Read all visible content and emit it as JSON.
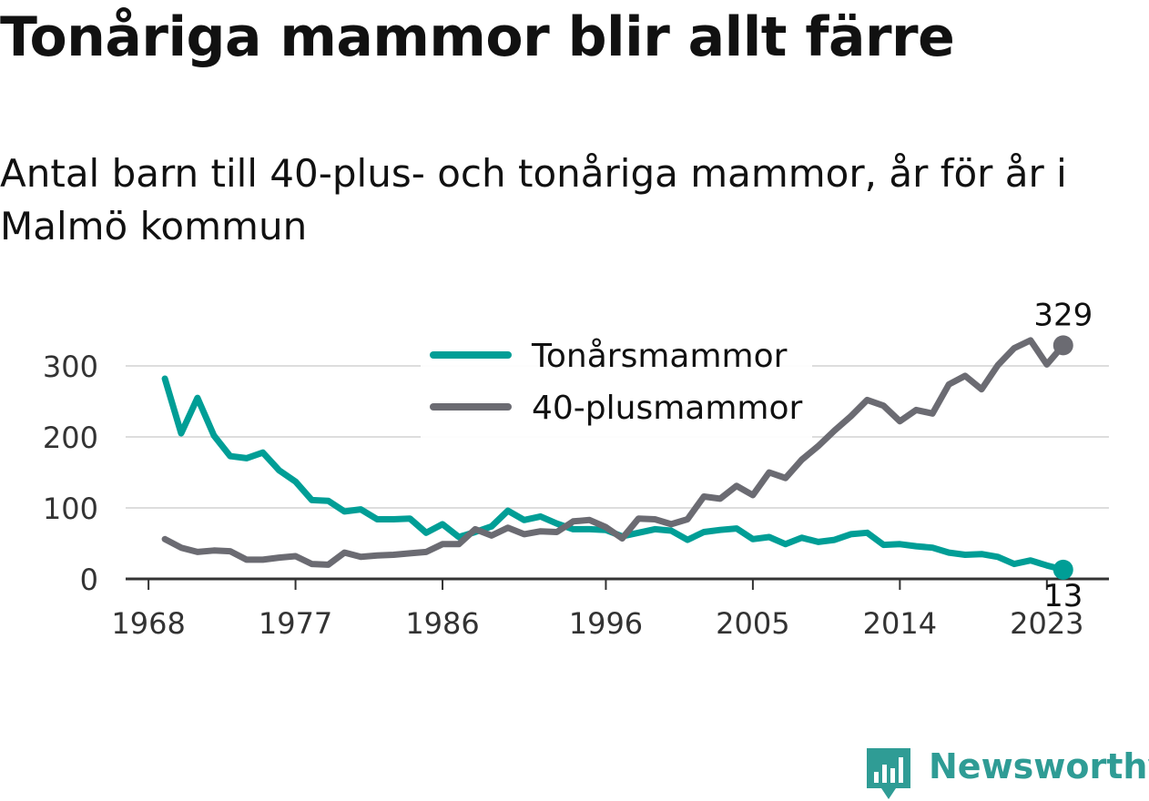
{
  "header": {
    "title": "Tonåriga mammor blir allt färre",
    "subtitle": "Antal barn till 40-plus- och tonåriga mammor, år för år i Malmö kommun"
  },
  "brand": {
    "name": "Newsworthy",
    "icon": "newsworthy-logo-icon",
    "color": "#2f9c95"
  },
  "chart_data": {
    "type": "line",
    "title": "Tonåriga mammor blir allt färre",
    "subtitle": "Antal barn till 40-plus- och tonåriga mammor, år för år i Malmö kommun",
    "x_ticks": [
      "1968",
      "1977",
      "1986",
      "1996",
      "2005",
      "2014",
      "2023"
    ],
    "y_ticks": [
      "0",
      "100",
      "200",
      "300"
    ],
    "xlim": [
      1966.6,
      2026.8
    ],
    "ylim": [
      0,
      300
    ],
    "grid": true,
    "legend_position": "top-center",
    "x": [
      1969,
      1970,
      1971,
      1972,
      1973,
      1974,
      1975,
      1976,
      1977,
      1978,
      1979,
      1980,
      1981,
      1982,
      1983,
      1984,
      1985,
      1986,
      1987,
      1988,
      1989,
      1990,
      1991,
      1992,
      1993,
      1994,
      1995,
      1996,
      1997,
      1998,
      1999,
      2000,
      2001,
      2002,
      2003,
      2004,
      2005,
      2006,
      2007,
      2008,
      2009,
      2010,
      2011,
      2012,
      2013,
      2014,
      2015,
      2016,
      2017,
      2018,
      2019,
      2020,
      2021,
      2022,
      2023,
      2024
    ],
    "series": [
      {
        "name": "Tonårsmammor",
        "color": "#009e96",
        "end_label": "13",
        "values": [
          282,
          205,
          255,
          202,
          173,
          170,
          178,
          153,
          137,
          111,
          110,
          95,
          98,
          84,
          84,
          85,
          65,
          77,
          59,
          66,
          74,
          96,
          83,
          88,
          78,
          70,
          70,
          69,
          60,
          65,
          70,
          68,
          55,
          66,
          69,
          71,
          56,
          59,
          49,
          58,
          52,
          55,
          63,
          65,
          48,
          49,
          46,
          44,
          37,
          34,
          35,
          31,
          21,
          26,
          19,
          13
        ]
      },
      {
        "name": "40-plusmammor",
        "color": "#6b6b72",
        "end_label": "329",
        "values": [
          56,
          44,
          38,
          40,
          39,
          27,
          27,
          30,
          32,
          21,
          20,
          37,
          31,
          33,
          34,
          36,
          38,
          49,
          49,
          70,
          61,
          72,
          63,
          67,
          66,
          81,
          83,
          73,
          57,
          85,
          84,
          77,
          84,
          116,
          113,
          131,
          118,
          150,
          142,
          168,
          187,
          209,
          229,
          252,
          244,
          222,
          238,
          233,
          274,
          286,
          267,
          301,
          325,
          336,
          302,
          329
        ]
      }
    ]
  }
}
